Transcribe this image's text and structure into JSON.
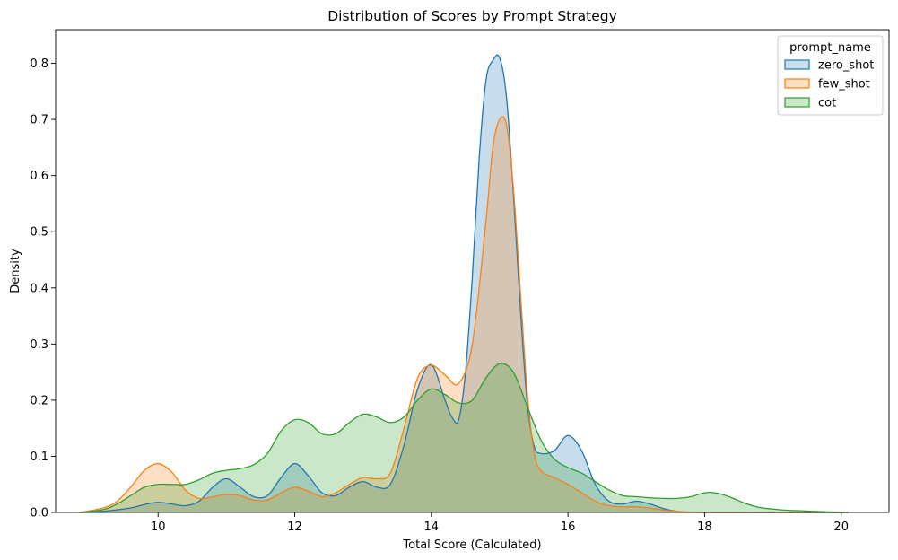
{
  "chart_data": {
    "type": "area",
    "title": "Distribution of Scores by Prompt Strategy",
    "xlabel": "Total Score (Calculated)",
    "ylabel": "Density",
    "xlim": [
      8.5,
      20.7
    ],
    "ylim": [
      0,
      0.86
    ],
    "x_ticks": [
      10,
      12,
      14,
      16,
      18,
      20
    ],
    "y_ticks": [
      0.0,
      0.1,
      0.2,
      0.3,
      0.4,
      0.5,
      0.6,
      0.7,
      0.8
    ],
    "grid": false,
    "legend": {
      "title": "prompt_name",
      "position": "top-right"
    },
    "series": [
      {
        "name": "zero_shot",
        "color": "#1f77b4",
        "x": [
          8.85,
          9.2,
          9.6,
          9.8,
          10.0,
          10.2,
          10.4,
          10.6,
          10.8,
          11.0,
          11.2,
          11.4,
          11.6,
          11.8,
          12.0,
          12.2,
          12.4,
          12.6,
          12.8,
          13.0,
          13.2,
          13.4,
          13.6,
          13.8,
          14.0,
          14.2,
          14.3,
          14.4,
          14.5,
          14.6,
          14.7,
          14.8,
          14.9,
          15.0,
          15.1,
          15.2,
          15.3,
          15.4,
          15.5,
          15.6,
          15.8,
          16.0,
          16.2,
          16.4,
          16.6,
          16.8,
          17.0,
          17.2,
          17.5,
          18.0,
          20.1
        ],
        "y": [
          0.0,
          0.002,
          0.008,
          0.014,
          0.018,
          0.015,
          0.012,
          0.02,
          0.045,
          0.06,
          0.045,
          0.028,
          0.03,
          0.062,
          0.087,
          0.065,
          0.035,
          0.03,
          0.045,
          0.055,
          0.045,
          0.05,
          0.12,
          0.22,
          0.263,
          0.2,
          0.17,
          0.165,
          0.25,
          0.42,
          0.63,
          0.77,
          0.805,
          0.81,
          0.74,
          0.57,
          0.37,
          0.2,
          0.12,
          0.105,
          0.11,
          0.137,
          0.11,
          0.05,
          0.02,
          0.015,
          0.02,
          0.015,
          0.004,
          0.0,
          0.0
        ]
      },
      {
        "name": "few_shot",
        "color": "#ff7f0e",
        "x": [
          8.85,
          9.2,
          9.4,
          9.6,
          9.8,
          10.0,
          10.2,
          10.4,
          10.6,
          10.8,
          11.0,
          11.2,
          11.4,
          11.6,
          11.8,
          12.0,
          12.2,
          12.4,
          12.6,
          12.8,
          13.0,
          13.2,
          13.4,
          13.6,
          13.8,
          14.0,
          14.2,
          14.4,
          14.6,
          14.8,
          14.9,
          15.0,
          15.1,
          15.2,
          15.3,
          15.4,
          15.5,
          15.6,
          15.8,
          16.0,
          16.2,
          16.4,
          16.6,
          16.8,
          17.0,
          17.2,
          17.5,
          18.0,
          20.1
        ],
        "y": [
          0.0,
          0.008,
          0.02,
          0.045,
          0.075,
          0.087,
          0.072,
          0.04,
          0.025,
          0.028,
          0.032,
          0.03,
          0.022,
          0.022,
          0.035,
          0.045,
          0.038,
          0.028,
          0.035,
          0.05,
          0.062,
          0.06,
          0.07,
          0.15,
          0.24,
          0.262,
          0.245,
          0.23,
          0.3,
          0.52,
          0.65,
          0.7,
          0.69,
          0.58,
          0.4,
          0.22,
          0.11,
          0.075,
          0.062,
          0.05,
          0.035,
          0.02,
          0.012,
          0.01,
          0.01,
          0.008,
          0.003,
          0.0,
          0.0
        ]
      },
      {
        "name": "cot",
        "color": "#2ca02c",
        "x": [
          8.85,
          9.2,
          9.4,
          9.6,
          9.8,
          10.0,
          10.2,
          10.4,
          10.6,
          10.8,
          11.0,
          11.2,
          11.4,
          11.6,
          11.8,
          12.0,
          12.2,
          12.4,
          12.6,
          12.8,
          13.0,
          13.2,
          13.4,
          13.6,
          13.8,
          14.0,
          14.2,
          14.4,
          14.6,
          14.8,
          15.0,
          15.2,
          15.4,
          15.6,
          15.8,
          16.0,
          16.2,
          16.4,
          16.6,
          16.8,
          17.0,
          17.2,
          17.4,
          17.6,
          17.8,
          18.0,
          18.2,
          18.4,
          18.6,
          18.8,
          19.0,
          19.2,
          19.4,
          19.6,
          20.1
        ],
        "y": [
          0.0,
          0.005,
          0.015,
          0.03,
          0.045,
          0.05,
          0.05,
          0.05,
          0.058,
          0.07,
          0.075,
          0.078,
          0.085,
          0.105,
          0.145,
          0.165,
          0.16,
          0.14,
          0.14,
          0.16,
          0.175,
          0.17,
          0.16,
          0.17,
          0.2,
          0.22,
          0.21,
          0.195,
          0.2,
          0.24,
          0.265,
          0.25,
          0.19,
          0.13,
          0.095,
          0.08,
          0.07,
          0.055,
          0.04,
          0.03,
          0.028,
          0.026,
          0.025,
          0.025,
          0.028,
          0.035,
          0.034,
          0.026,
          0.016,
          0.009,
          0.006,
          0.004,
          0.003,
          0.002,
          0.0
        ]
      }
    ]
  }
}
